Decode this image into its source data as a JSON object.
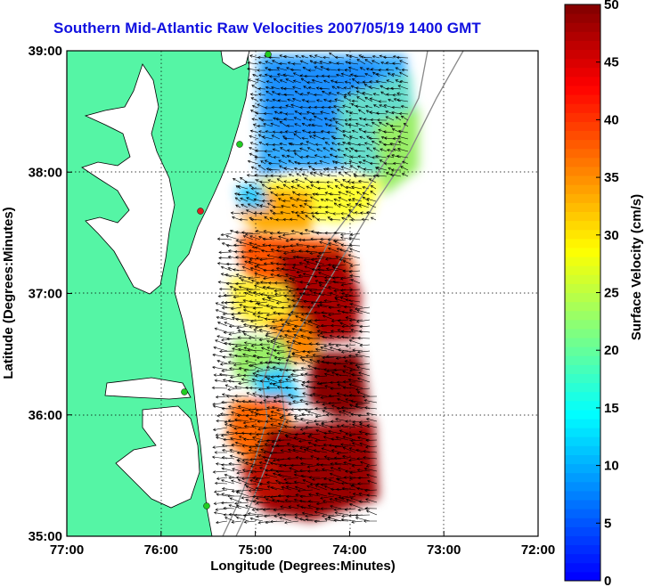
{
  "title": "Southern Mid-Atlantic Raw Velocities 2007/05/19 1400 GMT",
  "map": {
    "xlabel": "Longitude (Degrees:Minutes)",
    "ylabel": "Latitude (Degrees:Minutes)",
    "x_ticks": [
      "77:00",
      "76:00",
      "75:00",
      "74:00",
      "73:00",
      "72:00"
    ],
    "y_ticks": [
      "39:00",
      "38:00",
      "37:00",
      "36:00",
      "35:00"
    ],
    "lon_range": [
      -77,
      -72
    ],
    "lat_range": [
      35,
      39
    ],
    "land_color": "#55f5a5",
    "grid": "dotted"
  },
  "colorbar": {
    "label": "Surface Velocity (cm/s)",
    "ticks": [
      "0",
      "5",
      "10",
      "15",
      "20",
      "25",
      "30",
      "35",
      "40",
      "45",
      "50"
    ],
    "range": [
      0,
      50
    ],
    "colormap": "jet"
  },
  "stations": {
    "color_active": "#22cc22",
    "color_inactive": "#dd2222"
  }
}
